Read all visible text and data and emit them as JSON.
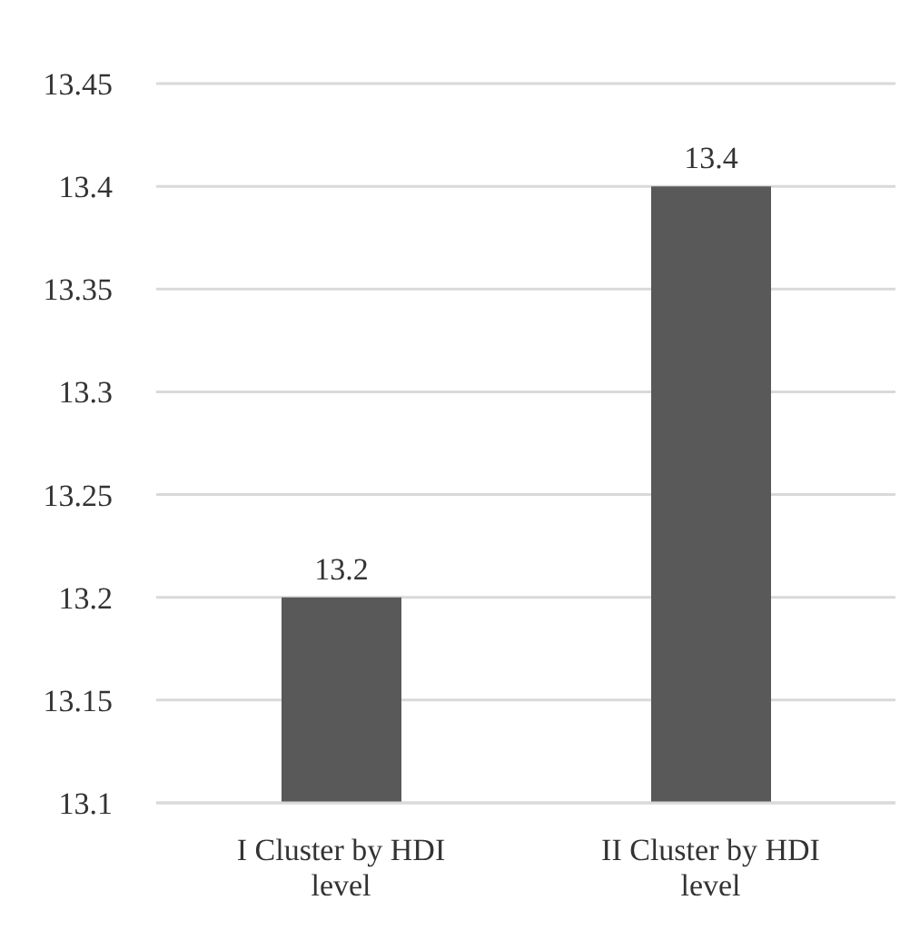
{
  "chart_data": {
    "type": "bar",
    "categories": [
      "I Cluster by HDI level",
      "II Cluster by HDI level"
    ],
    "values": [
      13.2,
      13.4
    ],
    "color": "#595959",
    "ylim": [
      13.1,
      13.45
    ],
    "yticks": [
      13.1,
      13.15,
      13.2,
      13.25,
      13.3,
      13.35,
      13.4,
      13.45
    ],
    "grid": "y",
    "data_labels": true
  }
}
